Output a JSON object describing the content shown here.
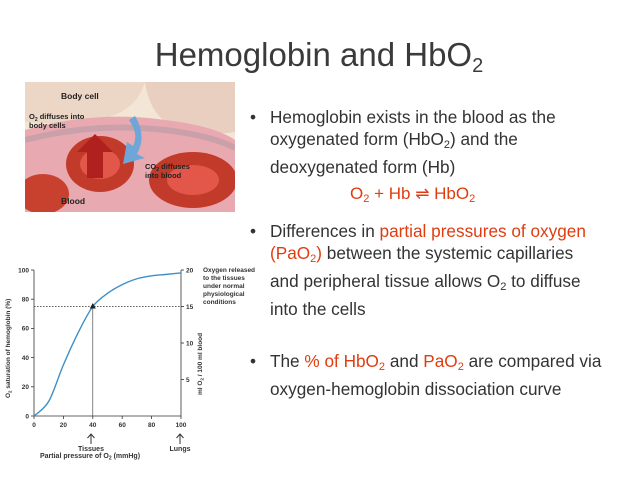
{
  "slide": {
    "title_main": "Hemoglobin and HbO",
    "title_sub": "2"
  },
  "bullet1": {
    "l1": "Hemoglobin exists in the blood as the",
    "l2a": "oxygenated form (HbO",
    "l2sub": "2",
    "l2b": ") and the",
    "l3": "deoxygenated form (Hb)"
  },
  "equation": {
    "o": "O",
    "o_sub": "2",
    "rest": " + Hb ⇌ HbO",
    "hbo_sub": "2"
  },
  "bullet2": {
    "l1a": "Differences in ",
    "l1b": "partial pressures of oxygen",
    "l2a": "(PaO",
    "l2sub": "2",
    "l2b": ")",
    "l2c": " between the systemic capillaries",
    "l3": "and peripheral tissue allows O",
    "l3sub": "2",
    "l3b": " to diffuse",
    "l4": "into the cells"
  },
  "bullet3": {
    "l1a": "The ",
    "l1b": "% of HbO",
    "l1sub": "2",
    "l1c": " and ",
    "l1d": "PaO",
    "l1sub2": "2",
    "l1e": " are compared via",
    "l2": "oxygen-hemoglobin dissociation curve"
  },
  "diagram": {
    "label_body_cell": "Body cell",
    "label_o2_a": "O",
    "label_o2_b": " diffuses into",
    "label_o2_c": "body cells",
    "label_co2_a": "CO",
    "label_co2_b": " diffuses",
    "label_co2_c": "into blood",
    "label_blood": "Blood",
    "sub2": "2"
  },
  "chart_data": {
    "type": "line",
    "x": [
      0,
      10,
      20,
      30,
      40,
      50,
      60,
      70,
      80,
      90,
      100
    ],
    "series": [
      {
        "values": [
          0,
          10,
          35,
          57,
          75,
          84,
          90,
          94,
          96,
          97,
          98
        ]
      }
    ],
    "xlabel_a": "Partial pressure of O",
    "xlabel_sub": "2",
    "xlabel_b": " (mmHg)",
    "ylabel_a": "O",
    "ylabel_sub": "2",
    "ylabel_b": " saturation of hemoglobin (%)",
    "y2label_a": "ml O",
    "y2label_sub": "2",
    "y2label_b": " / 100 ml blood",
    "xlim": [
      0,
      100
    ],
    "ylim": [
      0,
      100
    ],
    "xticks": [
      "0",
      "20",
      "40",
      "60",
      "80",
      "100"
    ],
    "yticks": [
      "0",
      "20",
      "40",
      "60",
      "80",
      "100"
    ],
    "y2ticks": [
      "5",
      "10",
      "15",
      "20"
    ],
    "y2lim": [
      0,
      20
    ],
    "marker": {
      "x": 40,
      "y": 75
    },
    "annotation_l1": "Oxygen released",
    "annotation_l2": "to the tissues",
    "annotation_l3": "under normal",
    "annotation_l4": "physiological",
    "annotation_l5": "conditions",
    "arrow_tissues": "Tissues",
    "arrow_lungs": "Lungs",
    "colors": {
      "curve": "#3e8fc6",
      "axis": "#333333"
    }
  }
}
